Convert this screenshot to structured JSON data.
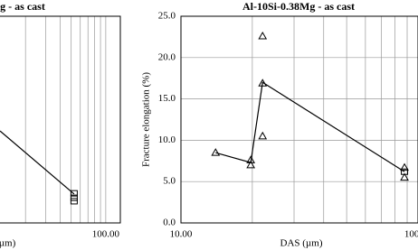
{
  "chart_data": [
    {
      "type": "line",
      "title": "g - as cast",
      "x_label": "µm)",
      "log_x": true,
      "grid": true,
      "xlim": [
        10,
        134
      ],
      "ylim": [
        0,
        6
      ],
      "xticks": [
        {
          "value": 100,
          "label": "100.00"
        }
      ],
      "series": [
        {
          "color": "#000000",
          "marker": "none",
          "x": [
            12,
            53
          ],
          "values": [
            2.67,
            0.84
          ]
        },
        {
          "color": "#000000",
          "marker": "square",
          "line": false,
          "x": [
            53,
            53,
            53
          ],
          "values": [
            0.86,
            0.73,
            0.63
          ]
        }
      ]
    },
    {
      "type": "line",
      "title": "Al-10Si-0.38Mg - as cast",
      "x_label": "DAS (µm)",
      "y_label": "Fracture elongation (%)",
      "log_x": true,
      "grid": true,
      "xlim": [
        10,
        100
      ],
      "ylim": [
        0,
        25
      ],
      "xticks": [
        {
          "value": 10,
          "label": "10.00"
        },
        {
          "value": 100,
          "label": "100.00"
        }
      ],
      "yticks": [
        {
          "value": 0,
          "label": "0.0"
        },
        {
          "value": 5,
          "label": "5.0"
        },
        {
          "value": 10,
          "label": "10.0"
        },
        {
          "value": 15,
          "label": "15.0"
        },
        {
          "value": 20,
          "label": "20.0"
        },
        {
          "value": 25,
          "label": "25.0"
        }
      ],
      "series": [
        {
          "color": "#000000",
          "marker": "none",
          "x": [
            14,
            19.7,
            22.1,
            87.7
          ],
          "values": [
            8.5,
            7.3,
            17.0,
            6.2
          ]
        },
        {
          "color": "#000000",
          "marker": "triangle",
          "line": false,
          "x": [
            14,
            19.7,
            19.7,
            22.1,
            22.1,
            22.1,
            87.7,
            87.7
          ],
          "values": [
            8.5,
            7.6,
            7.0,
            22.6,
            16.9,
            10.5,
            6.7,
            5.5
          ]
        },
        {
          "color": "#000000",
          "marker": "square",
          "line": false,
          "x": [
            87.7
          ],
          "values": [
            6.2
          ]
        }
      ]
    }
  ]
}
